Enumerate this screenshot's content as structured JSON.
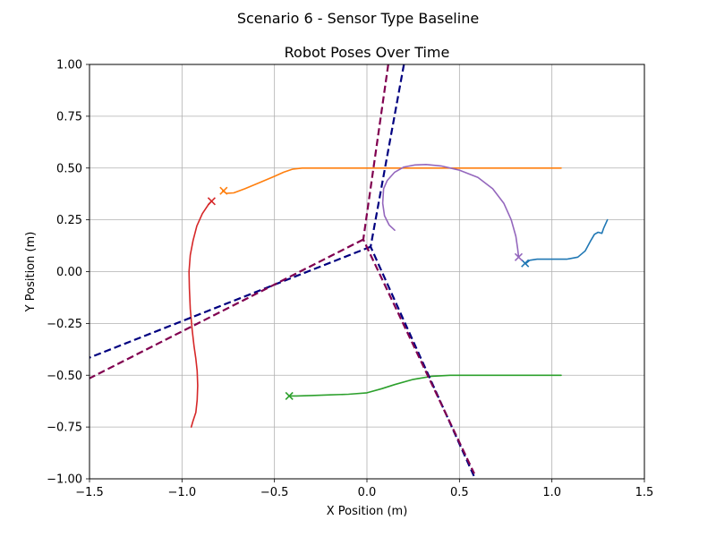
{
  "chart_data": {
    "type": "line",
    "suptitle": "Scenario 6 - Sensor Type Baseline",
    "title": "Robot Poses Over Time",
    "xlabel": "X Position (m)",
    "ylabel": "Y Position (m)",
    "xlim": [
      -1.5,
      1.5
    ],
    "ylim": [
      -1.0,
      1.0
    ],
    "xticks": [
      -1.5,
      -1.0,
      -0.5,
      0.0,
      0.5,
      1.0,
      1.5
    ],
    "xtick_labels": [
      "−1.5",
      "−1.0",
      "−0.5",
      "0.0",
      "0.5",
      "1.0",
      "1.5"
    ],
    "yticks": [
      -1.0,
      -0.75,
      -0.5,
      -0.25,
      0.0,
      0.25,
      0.5,
      0.75,
      1.0
    ],
    "ytick_labels": [
      "−1.00",
      "−0.75",
      "−0.50",
      "−0.25",
      "0.00",
      "0.25",
      "0.50",
      "0.75",
      "1.00"
    ],
    "grid": true,
    "series": [
      {
        "color": "#1f77b4",
        "style": "solid",
        "points": [
          [
            1.3,
            0.25
          ],
          [
            1.28,
            0.21
          ],
          [
            1.27,
            0.185
          ],
          [
            1.25,
            0.19
          ],
          [
            1.23,
            0.18
          ],
          [
            1.21,
            0.15
          ],
          [
            1.18,
            0.1
          ],
          [
            1.14,
            0.07
          ],
          [
            1.08,
            0.06
          ],
          [
            1.0,
            0.06
          ],
          [
            0.92,
            0.06
          ],
          [
            0.88,
            0.055
          ],
          [
            0.86,
            0.04
          ]
        ],
        "end_marker": [
          0.855,
          0.04
        ]
      },
      {
        "color": "#ff7f0e",
        "style": "solid",
        "points": [
          [
            1.05,
            0.5
          ],
          [
            0.8,
            0.5
          ],
          [
            0.5,
            0.5
          ],
          [
            0.2,
            0.5
          ],
          [
            0.0,
            0.5
          ],
          [
            -0.2,
            0.5
          ],
          [
            -0.35,
            0.5
          ],
          [
            -0.4,
            0.495
          ],
          [
            -0.45,
            0.48
          ],
          [
            -0.5,
            0.46
          ],
          [
            -0.58,
            0.43
          ],
          [
            -0.66,
            0.4
          ],
          [
            -0.72,
            0.38
          ],
          [
            -0.76,
            0.378
          ],
          [
            -0.78,
            0.39
          ]
        ],
        "end_marker": [
          -0.775,
          0.39
        ]
      },
      {
        "color": "#2ca02c",
        "style": "solid",
        "points": [
          [
            1.05,
            -0.5
          ],
          [
            0.8,
            -0.5
          ],
          [
            0.6,
            -0.5
          ],
          [
            0.45,
            -0.5
          ],
          [
            0.35,
            -0.505
          ],
          [
            0.25,
            -0.52
          ],
          [
            0.15,
            -0.545
          ],
          [
            0.08,
            -0.565
          ],
          [
            0.0,
            -0.585
          ],
          [
            -0.1,
            -0.592
          ],
          [
            -0.2,
            -0.595
          ],
          [
            -0.3,
            -0.598
          ],
          [
            -0.38,
            -0.6
          ],
          [
            -0.42,
            -0.6
          ]
        ],
        "end_marker": [
          -0.42,
          -0.6
        ]
      },
      {
        "color": "#d62728",
        "style": "solid",
        "points": [
          [
            -0.95,
            -0.75
          ],
          [
            -0.94,
            -0.72
          ],
          [
            -0.925,
            -0.68
          ],
          [
            -0.918,
            -0.62
          ],
          [
            -0.915,
            -0.55
          ],
          [
            -0.918,
            -0.48
          ],
          [
            -0.925,
            -0.42
          ],
          [
            -0.935,
            -0.36
          ],
          [
            -0.945,
            -0.28
          ],
          [
            -0.955,
            -0.18
          ],
          [
            -0.96,
            -0.08
          ],
          [
            -0.962,
            0.0
          ],
          [
            -0.955,
            0.08
          ],
          [
            -0.94,
            0.15
          ],
          [
            -0.92,
            0.22
          ],
          [
            -0.89,
            0.28
          ],
          [
            -0.86,
            0.32
          ],
          [
            -0.84,
            0.34
          ]
        ],
        "end_marker": [
          -0.84,
          0.34
        ]
      },
      {
        "color": "#9467bd",
        "style": "solid",
        "points": [
          [
            0.15,
            0.2
          ],
          [
            0.12,
            0.225
          ],
          [
            0.095,
            0.27
          ],
          [
            0.085,
            0.33
          ],
          [
            0.09,
            0.4
          ],
          [
            0.11,
            0.44
          ],
          [
            0.15,
            0.48
          ],
          [
            0.2,
            0.505
          ],
          [
            0.26,
            0.515
          ],
          [
            0.32,
            0.517
          ],
          [
            0.4,
            0.51
          ],
          [
            0.5,
            0.49
          ],
          [
            0.6,
            0.455
          ],
          [
            0.68,
            0.4
          ],
          [
            0.74,
            0.33
          ],
          [
            0.78,
            0.25
          ],
          [
            0.805,
            0.17
          ],
          [
            0.815,
            0.11
          ],
          [
            0.82,
            0.07
          ]
        ],
        "end_marker": [
          0.82,
          0.07
        ]
      },
      {
        "color": "#000080",
        "style": "dashed",
        "points": [
          [
            0.2,
            1.0
          ],
          [
            0.02,
            0.12
          ],
          [
            0.58,
            -0.99
          ]
        ]
      },
      {
        "color": "#000080",
        "style": "dashed",
        "points": [
          [
            0.02,
            0.12
          ],
          [
            -1.5,
            -0.415
          ]
        ]
      },
      {
        "color": "#800050",
        "style": "dashed",
        "points": [
          [
            0.115,
            1.0
          ],
          [
            -0.02,
            0.155
          ],
          [
            0.58,
            -0.975
          ]
        ]
      },
      {
        "color": "#800050",
        "style": "dashed",
        "points": [
          [
            -0.02,
            0.155
          ],
          [
            -1.5,
            -0.515
          ]
        ]
      }
    ]
  }
}
